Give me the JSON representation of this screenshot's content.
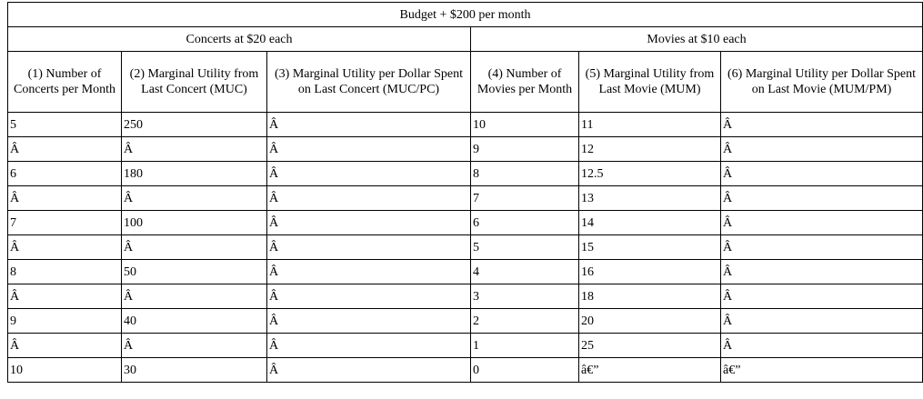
{
  "table": {
    "budget_title": "Budget + $200 per month",
    "group_concerts": "Concerts at $20 each",
    "group_movies": "Movies at $10 each",
    "columns": [
      "(1) Number of Concerts per Month",
      "(2) Marginal Utility from Last Concert (MUC)",
      "(3) Marginal Utility per Dollar Spent on Last Concert (MUC/PC)",
      "(4) Number of Movies per Month",
      "(5) Marginal Utility from Last Movie (MUM)",
      "(6) Marginal Utility per Dollar Spent on Last Movie (MUM/PM)"
    ],
    "rows": [
      [
        "5",
        "250",
        "Â",
        "10",
        "11",
        "Â"
      ],
      [
        "Â",
        "Â",
        "Â",
        "9",
        "12",
        "Â"
      ],
      [
        "6",
        "180",
        "Â",
        "8",
        "12.5",
        "Â"
      ],
      [
        "Â",
        "Â",
        "Â",
        "7",
        "13",
        "Â"
      ],
      [
        "7",
        "100",
        "Â",
        "6",
        "14",
        "Â"
      ],
      [
        "Â",
        "Â",
        "Â",
        "5",
        "15",
        "Â"
      ],
      [
        "8",
        "50",
        "Â",
        "4",
        "16",
        "Â"
      ],
      [
        "Â",
        "Â",
        "Â",
        "3",
        "18",
        "Â"
      ],
      [
        "9",
        "40",
        "Â",
        "2",
        "20",
        "Â"
      ],
      [
        "Â",
        "Â",
        "Â",
        "1",
        "25",
        "Â"
      ],
      [
        "10",
        "30",
        "Â",
        "0",
        "â€”",
        "â€”"
      ]
    ]
  }
}
